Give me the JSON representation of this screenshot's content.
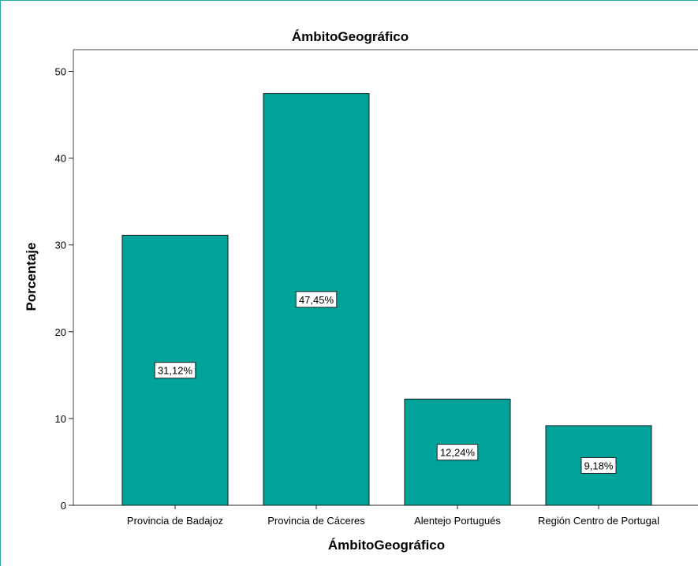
{
  "chart_data": {
    "type": "bar",
    "title": "ÁmbitoGeográfico",
    "xlabel": "ÁmbitoGeográfico",
    "ylabel": "Porcentaje",
    "categories": [
      "Provincia de Badajoz",
      "Provincia de Cáceres",
      "Alentejo Portugués",
      "Región Centro de Portugal"
    ],
    "values": [
      31.12,
      47.45,
      12.24,
      9.18
    ],
    "data_labels": [
      "31,12%",
      "47,45%",
      "12,24%",
      "9,18%"
    ],
    "ylim": [
      0,
      52.5
    ],
    "yticks": [
      0,
      10,
      20,
      30,
      40,
      50
    ],
    "ytick_labels": [
      "0",
      "10",
      "20",
      "30",
      "40",
      "50"
    ],
    "grid": false,
    "legend": "none",
    "colors": {
      "bar_fill": "#00a39a",
      "bar_stroke": "#1b1b1b",
      "frame_border": "#21a8a0"
    }
  }
}
